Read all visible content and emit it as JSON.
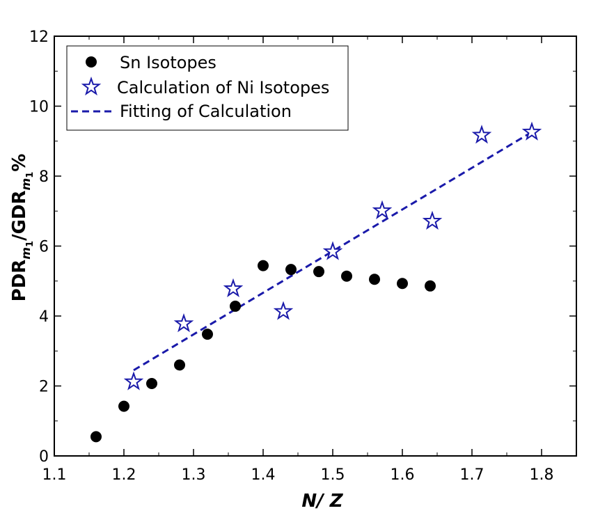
{
  "chart_data": {
    "type": "scatter",
    "xlabel": "N/ Z",
    "ylabel": "PDR_m1/GDR_m1%",
    "xlim": [
      1.1,
      1.85
    ],
    "ylim": [
      0,
      12
    ],
    "xticks": [
      1.1,
      1.2,
      1.3,
      1.4,
      1.5,
      1.6,
      1.7,
      1.8
    ],
    "yticks": [
      0,
      2,
      4,
      6,
      8,
      10,
      12
    ],
    "legend_position": "top-left",
    "series": [
      {
        "name": "Sn Isotopes",
        "marker": "filled-circle",
        "color": "#000000",
        "x": [
          1.16,
          1.2,
          1.24,
          1.28,
          1.32,
          1.36,
          1.4,
          1.44,
          1.48,
          1.52,
          1.56,
          1.6,
          1.64
        ],
        "y": [
          0.55,
          1.42,
          2.07,
          2.6,
          3.48,
          4.28,
          5.44,
          5.33,
          5.27,
          5.14,
          5.05,
          4.93,
          4.86
        ]
      },
      {
        "name": "Calculation of Ni Isotopes",
        "marker": "open-star",
        "color": "#1a1aaa",
        "x": [
          1.214,
          1.286,
          1.357,
          1.429,
          1.5,
          1.571,
          1.643,
          1.714,
          1.786
        ],
        "y": [
          2.12,
          3.78,
          4.78,
          4.13,
          5.84,
          7.01,
          6.71,
          9.17,
          9.26
        ]
      },
      {
        "name": "Fitting of Calculation",
        "marker": "dashed-line",
        "color": "#1a1aaa",
        "x": [
          1.214,
          1.786
        ],
        "y": [
          2.45,
          9.26
        ]
      }
    ]
  }
}
